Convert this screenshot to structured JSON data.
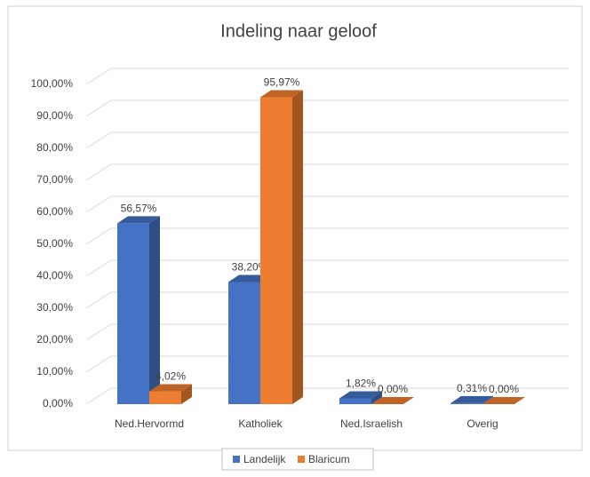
{
  "chart_data": {
    "type": "bar3d",
    "title": "Indeling naar geloof",
    "categories": [
      "Ned.Hervormd",
      "Katholiek",
      "Ned.Israelish",
      "Overig"
    ],
    "series": [
      {
        "name": "Landelijk",
        "color": "#4472c4",
        "values": [
          56.57,
          38.2,
          1.82,
          0.31
        ],
        "value_labels": [
          "56,57%",
          "38,20%",
          "1,82%",
          "0,31%"
        ]
      },
      {
        "name": "Blaricum",
        "color": "#ed7d31",
        "values": [
          4.02,
          95.97,
          0.0,
          0.0
        ],
        "value_labels": [
          "4,02%",
          "95,97%",
          "0,00%",
          "0,00%"
        ]
      }
    ],
    "ylim": [
      0,
      100
    ],
    "yticks": [
      {
        "value": 0,
        "label": "0,00%"
      },
      {
        "value": 10,
        "label": "10,00%"
      },
      {
        "value": 20,
        "label": "20,00%"
      },
      {
        "value": 30,
        "label": "30,00%"
      },
      {
        "value": 40,
        "label": "40,00%"
      },
      {
        "value": 50,
        "label": "50,00%"
      },
      {
        "value": 60,
        "label": "60,00%"
      },
      {
        "value": 70,
        "label": "70,00%"
      },
      {
        "value": 80,
        "label": "80,00%"
      },
      {
        "value": 90,
        "label": "90,00%"
      },
      {
        "value": 100,
        "label": "100,00%"
      }
    ],
    "grid": true,
    "legend": "bottom"
  }
}
